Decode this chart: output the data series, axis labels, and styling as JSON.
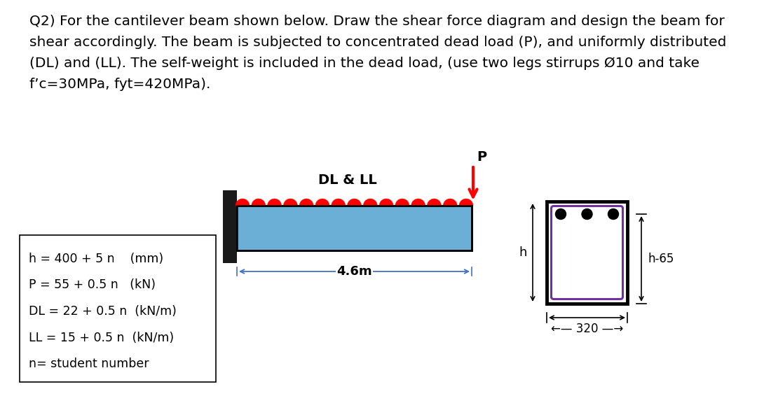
{
  "title_text": [
    "Q2) For the cantilever beam shown below. Draw the shear force diagram and design the beam for",
    "shear accordingly. The beam is subjected to concentrated dead load (P), and uniformly distributed",
    "(DL) and (LL). The self-weight is included in the dead load, (use two legs stirrups Ø10 and take",
    "f’c=30MPa, fyt=420MPa)."
  ],
  "box_lines": [
    "h = 400 + 5 n    (mm)",
    "P = 55 + 0.5 n   (kN)",
    "DL = 22 + 0.5 n  (kN/m)",
    "LL = 15 + 0.5 n  (kN/m)",
    "n= student number"
  ],
  "beam_color": "#6baed6",
  "red_color": "#ff0000",
  "wall_color": "#1a1a1a",
  "label_46m": "4.6m",
  "label_DL_LL": "DL & LL",
  "label_P": "P",
  "label_h": "h",
  "label_h65": "h-65",
  "label_320": "320",
  "cross_section_outline": "#000000",
  "stirrup_color": "#7030a0",
  "rebar_color": "#000000",
  "dim_color": "#4472c4",
  "font_size_title": 14.5,
  "font_size_box": 12.5,
  "font_size_label": 13
}
